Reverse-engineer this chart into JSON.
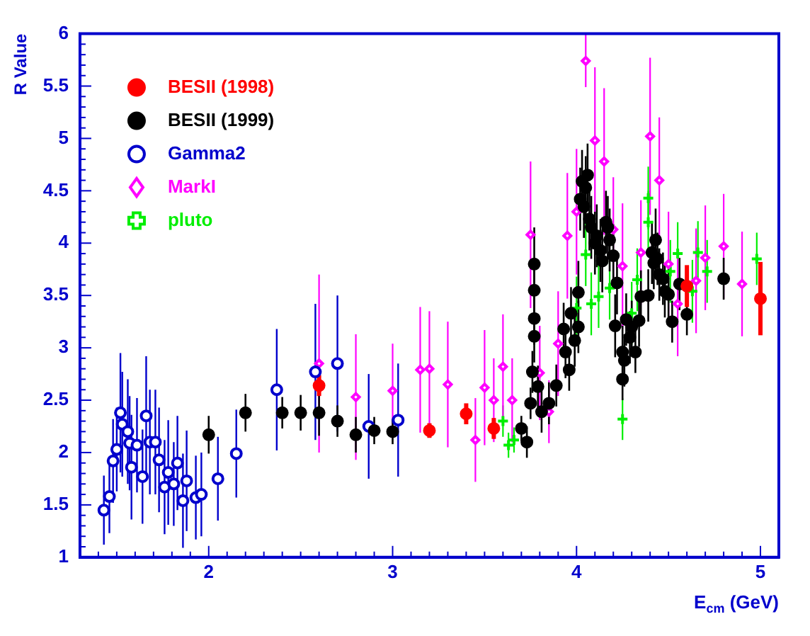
{
  "chart_data": {
    "type": "scatter",
    "xlabel": "E$_{cm}$ (GeV)",
    "ylabel": "R Value",
    "xlim": [
      1.3,
      5.1
    ],
    "xticks": [
      2,
      3,
      4,
      5
    ],
    "ylim": [
      1,
      6
    ],
    "yticks": [
      1,
      1.5,
      2,
      2.5,
      3,
      3.5,
      4,
      4.5,
      5,
      5.5,
      6
    ],
    "grid": false,
    "legend": "top left",
    "series": [
      {
        "name": "BESII (1998)",
        "color": "#ff0000",
        "marker": "circle",
        "x": [
          2.6,
          3.2,
          3.4,
          3.55,
          4.6,
          5.0
        ],
        "values": [
          2.64,
          2.21,
          2.37,
          2.23,
          3.59,
          3.47
        ],
        "errors": [
          0.1,
          0.07,
          0.1,
          0.1,
          0.2,
          0.35
        ]
      },
      {
        "name": "BESII (1999)",
        "color": "#000000",
        "marker": "circle",
        "x": [
          2.0,
          2.2,
          2.4,
          2.5,
          2.6,
          2.7,
          2.8,
          2.9,
          3.0,
          3.7,
          3.73,
          3.75,
          3.76,
          3.77,
          3.77,
          3.77,
          3.77,
          3.79,
          3.81,
          3.85,
          3.89,
          3.93,
          3.94,
          3.96,
          3.97,
          3.99,
          4.01,
          4.01,
          4.02,
          4.03,
          4.04,
          4.05,
          4.06,
          4.07,
          4.08,
          4.1,
          4.11,
          4.13,
          4.14,
          4.16,
          4.17,
          4.18,
          4.2,
          4.22,
          4.21,
          4.25,
          4.25,
          4.26,
          4.27,
          4.29,
          4.3,
          4.32,
          4.34,
          4.35,
          4.39,
          4.41,
          4.43,
          4.42,
          4.44,
          4.45,
          4.47,
          4.48,
          4.5,
          4.52,
          4.56,
          4.6,
          4.8
        ],
        "values": [
          2.17,
          2.38,
          2.38,
          2.38,
          2.38,
          2.3,
          2.17,
          2.21,
          2.2,
          2.23,
          2.1,
          2.47,
          2.77,
          3.11,
          3.28,
          3.55,
          3.8,
          2.63,
          2.39,
          2.47,
          2.64,
          3.18,
          2.96,
          2.79,
          3.33,
          3.07,
          3.2,
          3.53,
          4.42,
          4.59,
          4.35,
          4.53,
          4.65,
          4.23,
          4.15,
          4.0,
          4.07,
          3.93,
          3.83,
          4.2,
          4.15,
          4.03,
          3.88,
          3.62,
          3.21,
          2.96,
          2.7,
          2.88,
          3.27,
          3.1,
          3.2,
          2.96,
          3.26,
          3.49,
          3.5,
          3.91,
          4.03,
          3.81,
          3.85,
          3.7,
          3.66,
          3.54,
          3.51,
          3.25,
          3.61,
          3.32,
          3.66
        ],
        "errors": [
          0.18,
          0.18,
          0.15,
          0.17,
          0.22,
          0.15,
          0.17,
          0.13,
          0.12,
          0.12,
          0.15,
          0.15,
          0.2,
          0.25,
          0.25,
          0.3,
          0.35,
          0.2,
          0.2,
          0.2,
          0.2,
          0.25,
          0.25,
          0.2,
          0.25,
          0.25,
          0.25,
          0.3,
          0.3,
          0.3,
          0.3,
          0.3,
          0.3,
          0.3,
          0.3,
          0.3,
          0.3,
          0.3,
          0.3,
          0.3,
          0.3,
          0.3,
          0.3,
          0.3,
          0.3,
          0.25,
          0.2,
          0.25,
          0.25,
          0.25,
          0.25,
          0.2,
          0.25,
          0.25,
          0.25,
          0.3,
          0.3,
          0.25,
          0.25,
          0.25,
          0.25,
          0.25,
          0.25,
          0.2,
          0.25,
          0.2,
          0.2
        ]
      },
      {
        "name": "Gamma2",
        "color": "#0000cc",
        "marker": "circle",
        "x": [
          1.43,
          1.46,
          1.48,
          1.5,
          1.52,
          1.53,
          1.56,
          1.57,
          1.58,
          1.61,
          1.64,
          1.66,
          1.68,
          1.71,
          1.73,
          1.76,
          1.78,
          1.81,
          1.83,
          1.86,
          1.88,
          1.93,
          1.96,
          2.05,
          2.15,
          2.37,
          2.58,
          2.7,
          2.87,
          3.03
        ],
        "values": [
          1.45,
          1.58,
          1.92,
          2.03,
          2.38,
          2.27,
          2.2,
          2.09,
          1.86,
          2.07,
          1.77,
          2.35,
          2.1,
          2.1,
          1.93,
          1.67,
          1.81,
          1.7,
          1.9,
          1.54,
          1.73,
          1.57,
          1.6,
          1.75,
          1.99,
          2.6,
          2.77,
          2.85,
          2.25,
          2.31
        ],
        "errors": [
          0.33,
          0.35,
          0.4,
          0.4,
          0.57,
          0.5,
          0.5,
          0.45,
          0.5,
          0.45,
          0.45,
          0.57,
          0.5,
          0.5,
          0.5,
          0.45,
          0.5,
          0.4,
          0.45,
          0.45,
          0.48,
          0.4,
          0.4,
          0.4,
          0.42,
          0.58,
          0.65,
          0.65,
          0.5,
          0.54
        ]
      },
      {
        "name": "MarkI",
        "color": "#ff00ff",
        "marker": "diamond",
        "x": [
          2.6,
          2.8,
          3.0,
          3.15,
          3.2,
          3.3,
          3.45,
          3.5,
          3.55,
          3.6,
          3.65,
          3.75,
          3.8,
          3.85,
          3.9,
          3.95,
          4.0,
          4.05,
          4.1,
          4.15,
          4.2,
          4.25,
          4.35,
          4.4,
          4.45,
          4.5,
          4.55,
          4.65,
          4.7,
          4.8,
          4.9
        ],
        "values": [
          2.85,
          2.53,
          2.59,
          2.79,
          2.8,
          2.65,
          2.12,
          2.62,
          2.5,
          2.82,
          2.5,
          4.08,
          2.76,
          2.39,
          3.04,
          4.07,
          4.3,
          5.74,
          4.98,
          4.78,
          4.13,
          3.78,
          3.91,
          5.02,
          4.6,
          3.8,
          3.42,
          3.64,
          3.86,
          3.97,
          3.61
        ],
        "errors": [
          0.85,
          0.6,
          0.45,
          0.6,
          0.55,
          0.6,
          0.4,
          0.55,
          0.4,
          0.5,
          0.4,
          0.7,
          0.45,
          0.3,
          0.5,
          0.6,
          0.6,
          0.25,
          0.7,
          0.7,
          0.5,
          0.6,
          0.5,
          0.75,
          0.6,
          0.5,
          0.5,
          0.5,
          0.5,
          0.5,
          0.5
        ]
      },
      {
        "name": "pluto",
        "color": "#00ee00",
        "marker": "cross",
        "x": [
          3.6,
          3.63,
          3.66,
          4.0,
          4.05,
          4.08,
          4.12,
          4.18,
          4.25,
          4.3,
          4.33,
          4.39,
          4.39,
          4.51,
          4.55,
          4.63,
          4.66,
          4.71,
          4.98
        ],
        "values": [
          2.3,
          2.07,
          2.12,
          3.38,
          3.89,
          3.42,
          3.49,
          3.57,
          2.32,
          3.33,
          3.65,
          4.43,
          4.2,
          3.73,
          3.9,
          3.54,
          3.91,
          3.73,
          3.85
        ],
        "errors": [
          0.15,
          0.12,
          0.12,
          0.3,
          0.3,
          0.3,
          0.3,
          0.3,
          0.2,
          0.3,
          0.3,
          0.3,
          0.3,
          0.3,
          0.3,
          0.3,
          0.3,
          0.3,
          0.25
        ]
      }
    ]
  }
}
